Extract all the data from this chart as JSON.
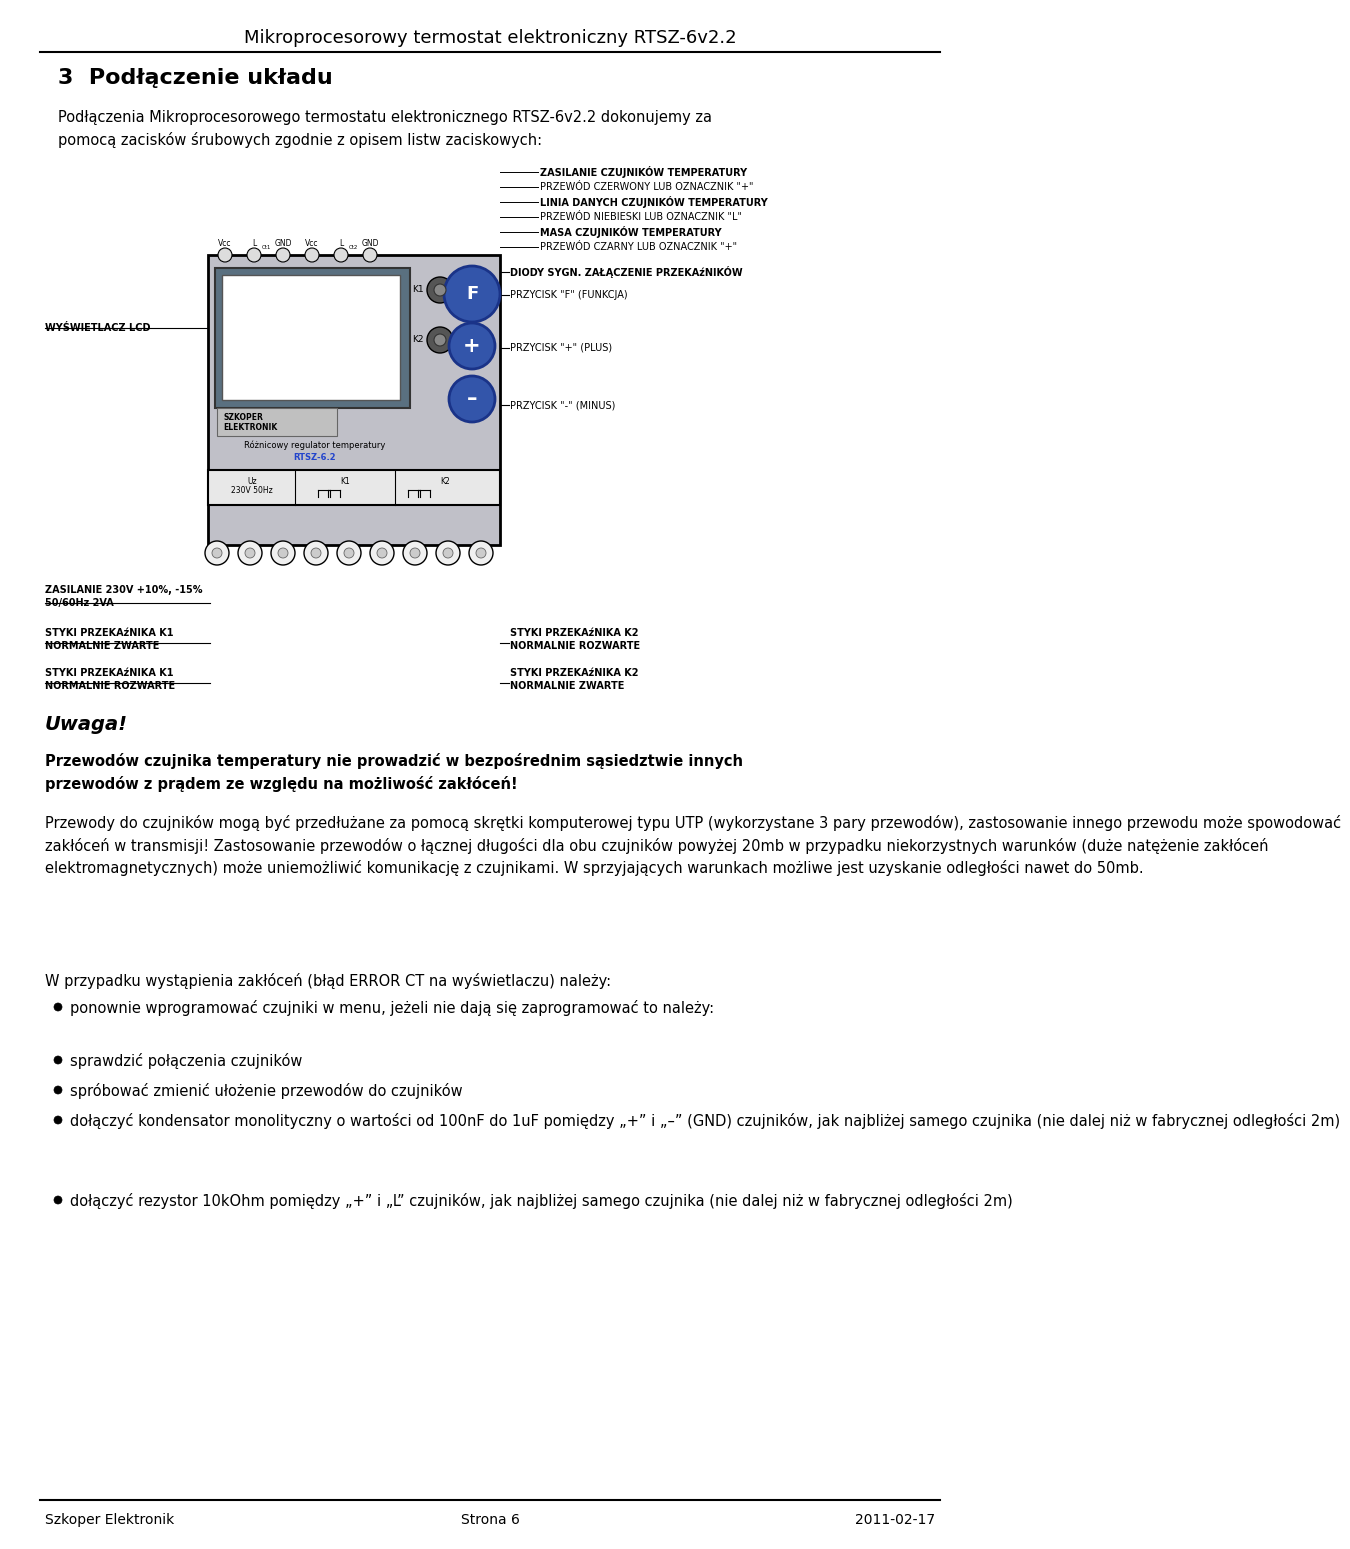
{
  "page_title": "Mikroprocesorowy termostat elektroniczny RTSZ-6v2.2",
  "footer_left": "Szkoper Elektronik",
  "footer_center": "Strona 6",
  "footer_right": "2011-02-17",
  "section_number": "3",
  "section_title": "Podłączenie układu",
  "intro_text": "Podłączenia Mikroprocesorowego termostatu elektronicznego RTSZ-6v2.2 dokonujemy za\npomocą zacisków śrubowych zgodnie z opisem listw zaciskowych:",
  "labels_top_right": [
    "ZASILANIE CZUJNIKÓW TEMPERATURY",
    "PRZEWÓD CZERWONY LUB OZNACZNIK \"+\"",
    "LINIA DANYCH CZUJNIKÓW TEMPERATURY",
    "PRZEWÓD NIEBIESKI LUB OZNACZNIK \"L\"",
    "MASA CZUJNIKÓW TEMPERATURY",
    "PRZEWÓD CZARNY LUB OZNACZNIK \"+\""
  ],
  "label_lcd": "WYŚWIETLACZ LCD",
  "label_diody": "DIODY SYGN. ZAŁĄCZENIE PRZEKAźNIKÓW",
  "label_f_func": "PRZYCISK \"F\" (FUNKCJA)",
  "label_plus": "PRZYCISK \"+\" (PLUS)",
  "label_minus": "PRZYCISK \"-\" (MINUS)",
  "label_zasilanie": "ZASILANIE 230V +10%, -15%\n50/60Hz 2VA",
  "label_k1_zwarte": "STYKI PRZEKAźNIKA K1\nNORMALNIE ZWARTE",
  "label_k1_rozwarte": "STYKI PRZEKAźNIKA K1\nNORMALNIE ROZWARTE",
  "label_k2_rozwarte": "STYKI PRZEKAźNIKA K2\nNORMALNIE ROZWARTE",
  "label_k2_zwarte": "STYKI PRZEKAźNIKA K2\nNORMALNIE ZWARTE",
  "uwaga_title": "Uwaga!",
  "uwaga_bold1": "Przewodów czujnika temperatury nie prowadzić w bezpośrednim sąsiedztwie innych\nprzewodów z prądem ze względu na możliwość zakłóceń!",
  "para1": "Przewody do czujników mogą być przedłużane za pomocą skrętki komputerowej typu UTP (wykorzystane 3 pary przewodów), zastosowanie innego przewodu może spowodować zakłóceń w transmisji! Zastosowanie przewodów o łącznej długości dla obu czujników powyżej 20mb w przypadku niekorzystnych warunków (duże natężenie zakłóceń elektromagnetycznych) może uniemożliwić komunikację z czujnikami. W sprzyjających warunkach możliwe jest uzyskanie odległości nawet do 50mb.",
  "para2": "W przypadku wystąpienia zakłóceń (błąd ERROR CT na wyświetlaczu) należy:",
  "bullets": [
    "ponownie wprogramować czujniki w menu, jeżeli nie dają się zaprogramować to należy:",
    "sprawdzić połączenia czujników",
    "spróbować zmienić ułożenie przewodów do czujników",
    "dołączyć kondensator monolityczny o wartości od 100nF do 1uF pomiędzy „+” i „–” (GND) czujników, jak najbliżej samego czujnika (nie dalej niż w fabrycznej odległości 2m)",
    "dołączyć rezystor 10kOhm pomiędzy „+” i „L” czujników, jak najbliżej samego czujnika (nie dalej niż w fabrycznej odległości 2m)"
  ],
  "bg_color": "#ffffff",
  "text_color": "#000000"
}
